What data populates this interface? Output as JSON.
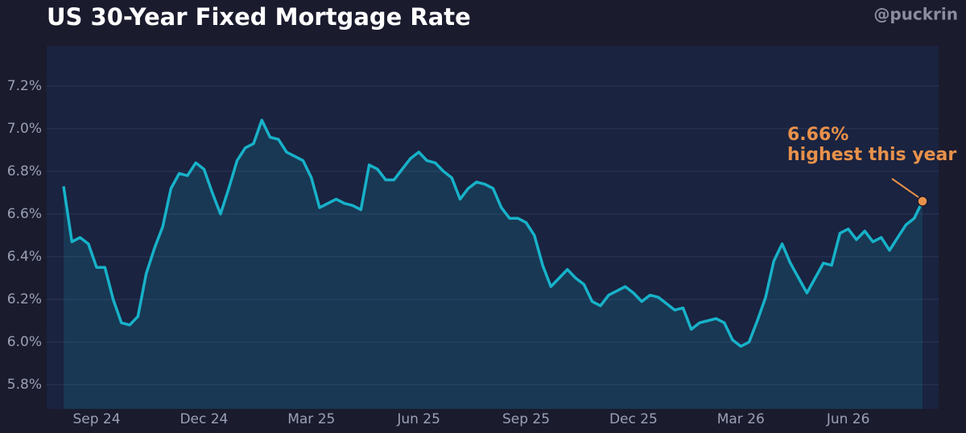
{
  "chart_data": {
    "type": "line",
    "title": "US 30-Year Fixed Mortgage Rate",
    "watermark": "@puckrin",
    "categories": [
      null,
      null,
      null,
      null,
      "Sep 24",
      null,
      null,
      null,
      null,
      null,
      null,
      null,
      null,
      null,
      null,
      null,
      null,
      "Dec 24",
      null,
      null,
      null,
      null,
      null,
      null,
      null,
      null,
      null,
      null,
      null,
      null,
      "Mar 25",
      null,
      null,
      null,
      null,
      null,
      null,
      null,
      null,
      null,
      null,
      null,
      null,
      "Jun 25",
      null,
      null,
      null,
      null,
      null,
      null,
      null,
      null,
      null,
      null,
      null,
      null,
      "Sep 25",
      null,
      null,
      null,
      null,
      null,
      null,
      null,
      null,
      null,
      null,
      null,
      null,
      "Dec 25",
      null,
      null,
      null,
      null,
      null,
      null,
      null,
      null,
      null,
      null,
      null,
      null,
      "Mar 26",
      null,
      null,
      null,
      null,
      null,
      null,
      null,
      null,
      null,
      null,
      null,
      null,
      "Jun 26",
      null,
      null,
      null,
      null,
      null,
      null,
      null,
      null,
      null
    ],
    "series": [
      {
        "name": "30-Year Fixed",
        "color": "#17b2c9",
        "values": [
          6.73,
          6.47,
          6.49,
          6.46,
          6.35,
          6.35,
          6.2,
          6.09,
          6.08,
          6.12,
          6.32,
          6.44,
          6.54,
          6.72,
          6.79,
          6.78,
          6.84,
          6.81,
          6.7,
          6.6,
          6.72,
          6.85,
          6.91,
          6.93,
          7.04,
          6.96,
          6.95,
          6.89,
          6.87,
          6.85,
          6.77,
          6.63,
          6.65,
          6.67,
          6.65,
          6.64,
          6.62,
          6.83,
          6.81,
          6.76,
          6.76,
          6.81,
          6.86,
          6.89,
          6.85,
          6.84,
          6.8,
          6.77,
          6.67,
          6.72,
          6.75,
          6.74,
          6.72,
          6.63,
          6.58,
          6.58,
          6.56,
          6.5,
          6.36,
          6.26,
          6.3,
          6.34,
          6.3,
          6.27,
          6.19,
          6.17,
          6.22,
          6.24,
          6.26,
          6.23,
          6.19,
          6.22,
          6.21,
          6.18,
          6.15,
          6.16,
          6.06,
          6.09,
          6.1,
          6.11,
          6.09,
          6.01,
          5.98,
          6.0,
          6.1,
          6.21,
          6.38,
          6.46,
          6.37,
          6.3,
          6.23,
          6.3,
          6.37,
          6.36,
          6.51,
          6.53,
          6.48,
          6.52,
          6.47,
          6.49,
          6.43,
          6.49,
          6.55,
          6.58,
          6.66
        ]
      }
    ],
    "ylim": [
      5.687,
      7.388
    ],
    "yticks": [
      {
        "value": 5.8,
        "label": "5.8%"
      },
      {
        "value": 6.0,
        "label": "6.0%"
      },
      {
        "value": 6.2,
        "label": "6.2%"
      },
      {
        "value": 6.4,
        "label": "6.4%"
      },
      {
        "value": 6.6,
        "label": "6.6%"
      },
      {
        "value": 6.8,
        "label": "6.8%"
      },
      {
        "value": 7.0,
        "label": "7.0%"
      },
      {
        "value": 7.2,
        "label": "7.2%"
      }
    ],
    "grid": true,
    "annotation": {
      "lines": [
        "6.66%",
        "highest this year"
      ],
      "color": "#e8914a"
    }
  }
}
